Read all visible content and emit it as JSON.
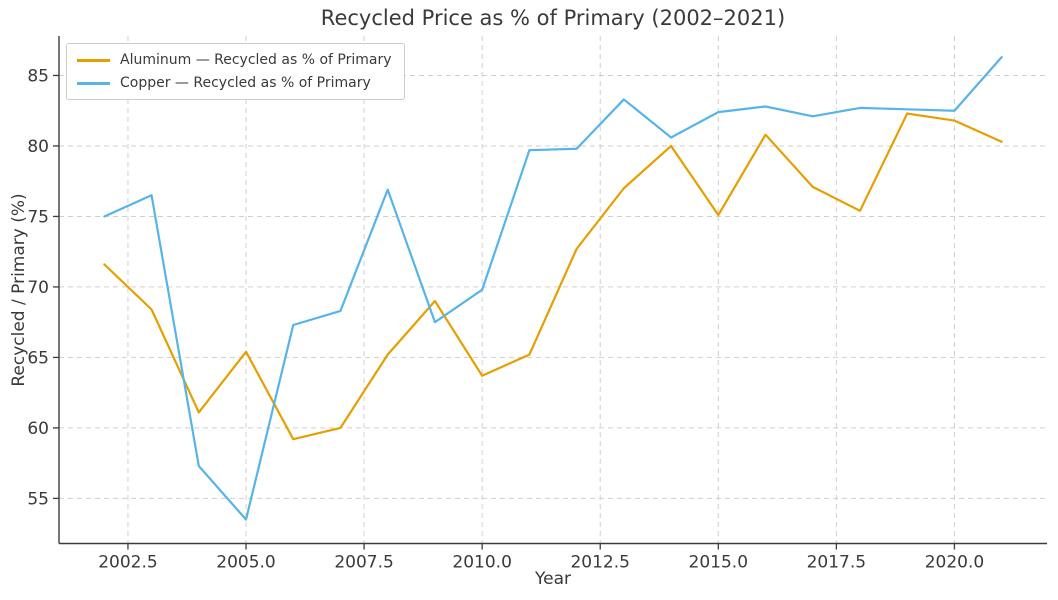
{
  "title": "Recycled Price as % of Primary (2002–2021)",
  "chart_data": {
    "type": "line",
    "title": "Recycled Price as % of Primary (2002–2021)",
    "xlabel": "Year",
    "ylabel": "Recycled / Primary (%)",
    "x": [
      2002,
      2003,
      2004,
      2005,
      2006,
      2007,
      2008,
      2009,
      2010,
      2011,
      2012,
      2013,
      2014,
      2015,
      2016,
      2017,
      2018,
      2019,
      2020,
      2021
    ],
    "series": [
      {
        "name": "Aluminum — Recycled as % of Primary",
        "color": "#E69F00",
        "values": [
          71.6,
          68.4,
          61.1,
          65.4,
          59.2,
          60.0,
          65.2,
          69.0,
          63.7,
          65.2,
          72.7,
          77.0,
          80.0,
          75.1,
          80.8,
          77.1,
          75.4,
          82.3,
          81.8,
          80.3
        ]
      },
      {
        "name": "Copper — Recycled as % of Primary",
        "color": "#56B4E9",
        "values": [
          75.0,
          76.5,
          57.3,
          53.5,
          67.3,
          68.3,
          76.9,
          67.5,
          69.8,
          79.7,
          79.8,
          83.3,
          80.6,
          82.4,
          82.8,
          82.1,
          82.7,
          82.6,
          82.5,
          86.3
        ]
      }
    ],
    "xticks": [
      2002.5,
      2005.0,
      2007.5,
      2010.0,
      2012.5,
      2015.0,
      2017.5,
      2020.0
    ],
    "xtick_labels": [
      "2002.5",
      "2005.0",
      "2007.5",
      "2010.0",
      "2012.5",
      "2015.0",
      "2017.5",
      "2020.0"
    ],
    "yticks": [
      55,
      60,
      65,
      70,
      75,
      80,
      85
    ],
    "ytick_labels": [
      "55",
      "60",
      "65",
      "70",
      "75",
      "80",
      "85"
    ],
    "xlim": [
      2001.04,
      2021.96
    ],
    "ylim": [
      51.8,
      87.8
    ],
    "grid": true,
    "grid_style": "dashed",
    "legend_position": "upper left",
    "colors": {
      "aluminum_line": "#E69F00",
      "copper_line": "#56B4E9",
      "grid": "#cfcfcf",
      "spine": "#3c3c3c",
      "text": "#3a3a3a",
      "legend_border": "#cccccc",
      "background": "#ffffff"
    }
  }
}
